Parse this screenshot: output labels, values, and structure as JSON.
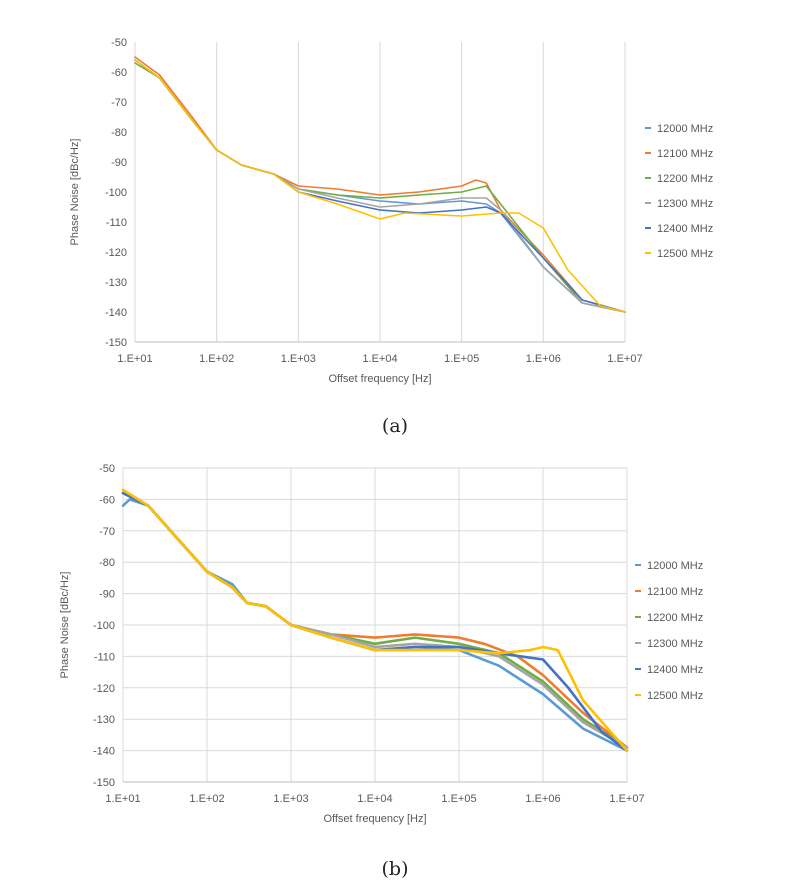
{
  "charts": [
    {
      "type": "line",
      "caption": "(a)",
      "xlabel": "Offset frequency [Hz]",
      "ylabel": "Phase Noise [dBc/Hz]",
      "x_scale": "log",
      "xlim": [
        10,
        10000000
      ],
      "ylim": [
        -150,
        -50
      ],
      "xticks": [
        "1.E+01",
        "1.E+02",
        "1.E+03",
        "1.E+04",
        "1.E+05",
        "1.E+06",
        "1.E+07"
      ],
      "yticks": [
        "-50",
        "-60",
        "-70",
        "-80",
        "-90",
        "-100",
        "-110",
        "-120",
        "-130",
        "-140",
        "-150"
      ],
      "grid": "vertical",
      "legend": "right",
      "series": [
        {
          "name": "12000 MHz",
          "color": "#5b9bd5",
          "points": [
            [
              10,
              -56
            ],
            [
              20,
              -62
            ],
            [
              50,
              -76
            ],
            [
              100,
              -86
            ],
            [
              200,
              -91
            ],
            [
              500,
              -94
            ],
            [
              1000,
              -99
            ],
            [
              3000,
              -101
            ],
            [
              10000,
              -103
            ],
            [
              30000,
              -104
            ],
            [
              100000,
              -103
            ],
            [
              200000,
              -104
            ],
            [
              300000,
              -107
            ],
            [
              1000000,
              -125
            ],
            [
              3000000,
              -137
            ],
            [
              10000000,
              -140
            ]
          ]
        },
        {
          "name": "12100 MHz",
          "color": "#ed7d31",
          "points": [
            [
              10,
              -55
            ],
            [
              20,
              -61
            ],
            [
              50,
              -75
            ],
            [
              100,
              -86
            ],
            [
              200,
              -91
            ],
            [
              500,
              -94
            ],
            [
              1000,
              -98
            ],
            [
              3000,
              -99
            ],
            [
              10000,
              -101
            ],
            [
              30000,
              -100
            ],
            [
              100000,
              -98
            ],
            [
              150000,
              -96
            ],
            [
              200000,
              -97
            ],
            [
              300000,
              -106
            ],
            [
              1000000,
              -121
            ],
            [
              3000000,
              -136
            ],
            [
              10000000,
              -140
            ]
          ]
        },
        {
          "name": "12200 MHz",
          "color": "#70ad47",
          "points": [
            [
              10,
              -57
            ],
            [
              20,
              -62
            ],
            [
              50,
              -76
            ],
            [
              100,
              -86
            ],
            [
              200,
              -91
            ],
            [
              500,
              -94
            ],
            [
              1000,
              -99
            ],
            [
              3000,
              -101
            ],
            [
              10000,
              -102
            ],
            [
              30000,
              -101
            ],
            [
              100000,
              -100
            ],
            [
              200000,
              -98
            ],
            [
              300000,
              -104
            ],
            [
              1000000,
              -122
            ],
            [
              3000000,
              -137
            ],
            [
              10000000,
              -140
            ]
          ]
        },
        {
          "name": "12300 MHz",
          "color": "#a5a5a5",
          "points": [
            [
              10,
              -56
            ],
            [
              20,
              -62
            ],
            [
              50,
              -76
            ],
            [
              100,
              -86
            ],
            [
              200,
              -91
            ],
            [
              500,
              -94
            ],
            [
              1000,
              -99
            ],
            [
              3000,
              -102
            ],
            [
              10000,
              -105
            ],
            [
              30000,
              -104
            ],
            [
              100000,
              -102
            ],
            [
              200000,
              -102
            ],
            [
              300000,
              -106
            ],
            [
              1000000,
              -125
            ],
            [
              3000000,
              -137
            ],
            [
              10000000,
              -140
            ]
          ]
        },
        {
          "name": "12400 MHz",
          "color": "#4472c4",
          "points": [
            [
              10,
              -56
            ],
            [
              20,
              -62
            ],
            [
              50,
              -76
            ],
            [
              100,
              -86
            ],
            [
              200,
              -91
            ],
            [
              500,
              -94
            ],
            [
              1000,
              -100
            ],
            [
              3000,
              -103
            ],
            [
              10000,
              -106
            ],
            [
              30000,
              -107
            ],
            [
              100000,
              -106
            ],
            [
              200000,
              -105
            ],
            [
              300000,
              -107
            ],
            [
              1000000,
              -122
            ],
            [
              3000000,
              -136
            ],
            [
              10000000,
              -140
            ]
          ]
        },
        {
          "name": "12500 MHz",
          "color": "#ffc000",
          "points": [
            [
              10,
              -56
            ],
            [
              20,
              -62
            ],
            [
              50,
              -76
            ],
            [
              100,
              -86
            ],
            [
              200,
              -91
            ],
            [
              500,
              -94
            ],
            [
              1000,
              -100
            ],
            [
              3000,
              -104
            ],
            [
              10000,
              -109
            ],
            [
              20000,
              -107
            ],
            [
              100000,
              -108
            ],
            [
              300000,
              -107
            ],
            [
              500000,
              -107
            ],
            [
              1000000,
              -112
            ],
            [
              2000000,
              -126
            ],
            [
              5000000,
              -138
            ],
            [
              10000000,
              -140
            ]
          ]
        }
      ]
    },
    {
      "type": "line",
      "caption": "(b)",
      "xlabel": "Offset frequency [Hz]",
      "ylabel": "Phase Noise [dBc/Hz]",
      "x_scale": "log",
      "xlim": [
        10,
        10000000
      ],
      "ylim": [
        -150,
        -50
      ],
      "xticks": [
        "1.E+01",
        "1.E+02",
        "1.E+03",
        "1.E+04",
        "1.E+05",
        "1.E+06",
        "1.E+07"
      ],
      "yticks": [
        "-50",
        "-60",
        "-70",
        "-80",
        "-90",
        "-100",
        "-110",
        "-120",
        "-130",
        "-140",
        "-150"
      ],
      "grid": "both",
      "legend": "right",
      "series": [
        {
          "name": "12000 MHz",
          "color": "#5b9bd5",
          "points": [
            [
              10,
              -62
            ],
            [
              12,
              -60
            ],
            [
              20,
              -62
            ],
            [
              50,
              -74
            ],
            [
              100,
              -83
            ],
            [
              200,
              -87
            ],
            [
              300,
              -93
            ],
            [
              500,
              -94
            ],
            [
              1000,
              -100
            ],
            [
              3000,
              -104
            ],
            [
              10000,
              -108
            ],
            [
              30000,
              -107
            ],
            [
              100000,
              -108
            ],
            [
              300000,
              -113
            ],
            [
              1000000,
              -122
            ],
            [
              3000000,
              -133
            ],
            [
              10000000,
              -140
            ]
          ]
        },
        {
          "name": "12100 MHz",
          "color": "#ed7d31",
          "points": [
            [
              10,
              -57
            ],
            [
              20,
              -62
            ],
            [
              50,
              -74
            ],
            [
              100,
              -83
            ],
            [
              200,
              -88
            ],
            [
              300,
              -93
            ],
            [
              500,
              -94
            ],
            [
              1000,
              -100
            ],
            [
              3000,
              -103
            ],
            [
              10000,
              -104
            ],
            [
              30000,
              -103
            ],
            [
              100000,
              -104
            ],
            [
              200000,
              -106
            ],
            [
              500000,
              -110
            ],
            [
              1000000,
              -116
            ],
            [
              3000000,
              -128
            ],
            [
              10000000,
              -139
            ]
          ]
        },
        {
          "name": "12200 MHz",
          "color": "#70ad47",
          "points": [
            [
              10,
              -58
            ],
            [
              20,
              -62
            ],
            [
              50,
              -74
            ],
            [
              100,
              -83
            ],
            [
              200,
              -88
            ],
            [
              300,
              -93
            ],
            [
              500,
              -94
            ],
            [
              1000,
              -100
            ],
            [
              3000,
              -103
            ],
            [
              10000,
              -106
            ],
            [
              30000,
              -104
            ],
            [
              100000,
              -106
            ],
            [
              300000,
              -109
            ],
            [
              1000000,
              -118
            ],
            [
              3000000,
              -130
            ],
            [
              10000000,
              -139
            ]
          ]
        },
        {
          "name": "12300 MHz",
          "color": "#a5a5a5",
          "points": [
            [
              10,
              -58
            ],
            [
              20,
              -62
            ],
            [
              50,
              -74
            ],
            [
              100,
              -83
            ],
            [
              200,
              -88
            ],
            [
              300,
              -93
            ],
            [
              500,
              -94
            ],
            [
              1000,
              -100
            ],
            [
              3000,
              -103
            ],
            [
              10000,
              -107
            ],
            [
              30000,
              -106
            ],
            [
              100000,
              -107
            ],
            [
              300000,
              -110
            ],
            [
              1000000,
              -119
            ],
            [
              3000000,
              -131
            ],
            [
              10000000,
              -139
            ]
          ]
        },
        {
          "name": "12400 MHz",
          "color": "#4472c4",
          "points": [
            [
              10,
              -58
            ],
            [
              20,
              -62
            ],
            [
              50,
              -74
            ],
            [
              100,
              -83
            ],
            [
              200,
              -88
            ],
            [
              300,
              -93
            ],
            [
              500,
              -94
            ],
            [
              1000,
              -100
            ],
            [
              3000,
              -104
            ],
            [
              10000,
              -108
            ],
            [
              30000,
              -107
            ],
            [
              100000,
              -107
            ],
            [
              300000,
              -109
            ],
            [
              1000000,
              -111
            ],
            [
              2000000,
              -120
            ],
            [
              5000000,
              -134
            ],
            [
              10000000,
              -140
            ]
          ]
        },
        {
          "name": "12500 MHz",
          "color": "#ffc000",
          "points": [
            [
              10,
              -57
            ],
            [
              20,
              -62
            ],
            [
              50,
              -74
            ],
            [
              100,
              -83
            ],
            [
              200,
              -88
            ],
            [
              300,
              -93
            ],
            [
              500,
              -94
            ],
            [
              1000,
              -100
            ],
            [
              3000,
              -104
            ],
            [
              10000,
              -108
            ],
            [
              30000,
              -108
            ],
            [
              100000,
              -108
            ],
            [
              300000,
              -109
            ],
            [
              700000,
              -108
            ],
            [
              1000000,
              -107
            ],
            [
              1500000,
              -108
            ],
            [
              3000000,
              -124
            ],
            [
              10000000,
              -140
            ]
          ]
        }
      ]
    }
  ]
}
